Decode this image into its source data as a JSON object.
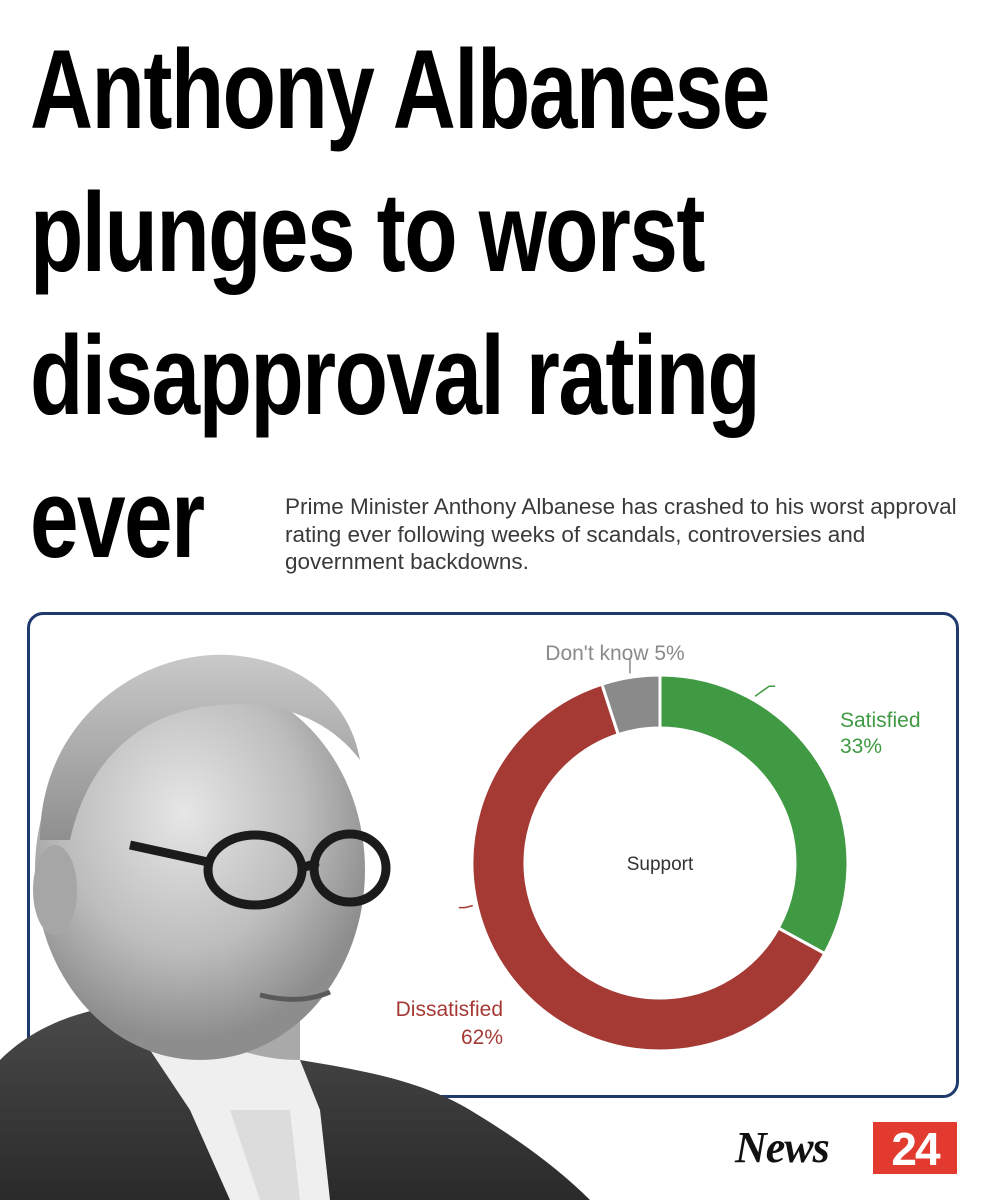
{
  "headline": {
    "line1": "Anthony Albanese",
    "line2": "plunges to worst",
    "line3": "disapproval rating",
    "line4": "ever"
  },
  "standfirst": "Prime Minister Anthony Albanese has crashed to his worst approval rating ever following weeks of scandals, controversies and government backdowns.",
  "chart_data": {
    "type": "pie",
    "variant": "donut",
    "center_label": "Support",
    "slices": [
      {
        "label": "Satisfied",
        "value": 33,
        "display": "33%",
        "color": "#3f9a43"
      },
      {
        "label": "Dissatisfied",
        "value": 62,
        "display": "62%",
        "color": "#a53a35"
      },
      {
        "label": "Don't know",
        "value": 5,
        "display": "Don't know 5%",
        "color": "#8a8a8a"
      }
    ],
    "label_colors": {
      "Satisfied": "#3f9a43",
      "Dissatisfied": "#a53a35",
      "Don't know": "#8a8a8a"
    }
  },
  "brand": {
    "word": "News",
    "number": "24",
    "accent": "#e23a2f"
  }
}
